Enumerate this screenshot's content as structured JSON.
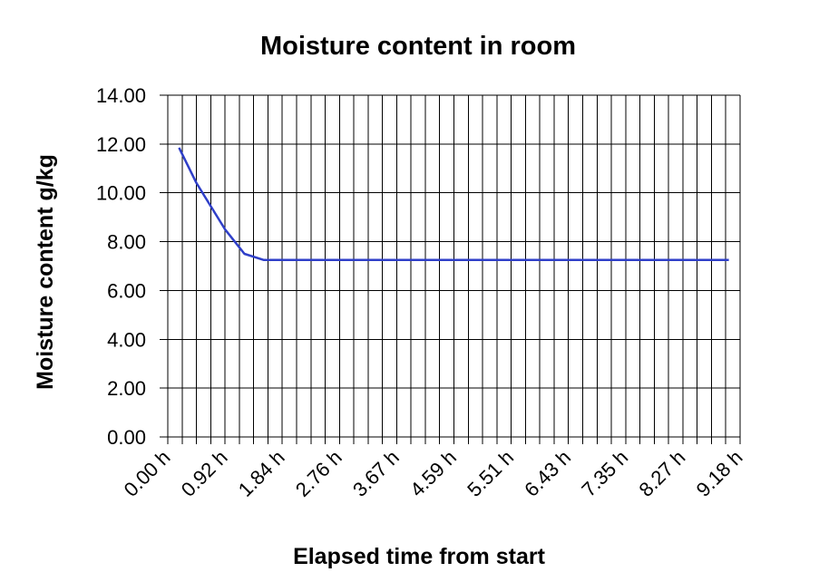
{
  "chart_data": {
    "type": "line",
    "title": "Moisture content in room",
    "xlabel": "Elapsed time from start",
    "ylabel": "Moisture content g/kg",
    "x_unit": "h",
    "xlim": [
      0,
      9.18
    ],
    "ylim": [
      0,
      14
    ],
    "y_ticks": [
      "0.00",
      "2.00",
      "4.00",
      "6.00",
      "8.00",
      "10.00",
      "12.00",
      "14.00"
    ],
    "x_ticks": [
      "0.00 h",
      "0.92 h",
      "1.84 h",
      "2.76 h",
      "3.67 h",
      "4.59 h",
      "5.51 h",
      "6.43 h",
      "7.35 h",
      "8.27 h",
      "9.18 h"
    ],
    "x_minor_step": 0.2295,
    "grid": true,
    "series": [
      {
        "color": "#2f3fc8",
        "x": [
          0.18,
          0.46,
          0.92,
          1.23,
          1.54,
          9.0
        ],
        "y": [
          11.85,
          10.4,
          8.5,
          7.5,
          7.25,
          7.25
        ]
      }
    ]
  }
}
